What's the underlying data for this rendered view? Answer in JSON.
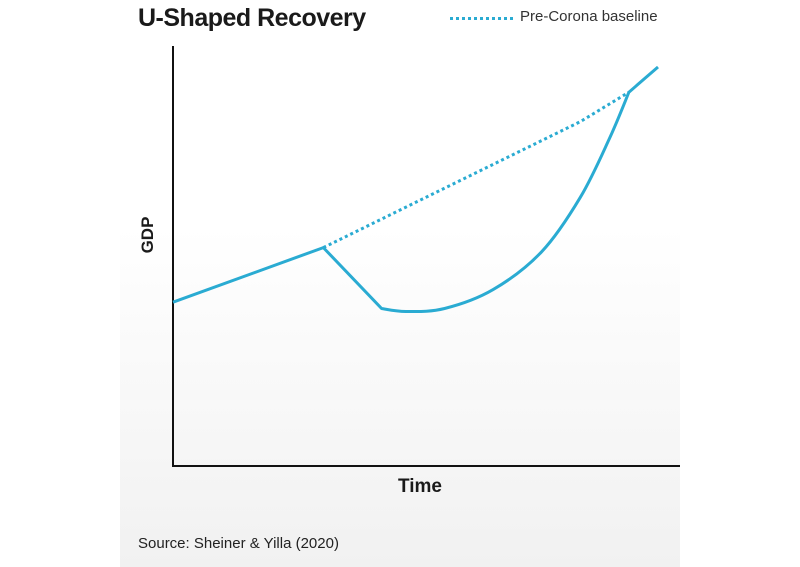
{
  "chart_data": {
    "type": "line",
    "title": "U-Shaped Recovery",
    "xlabel": "Time",
    "ylabel": "GDP",
    "xlim": [
      0,
      100
    ],
    "ylim": [
      0,
      100
    ],
    "grid": false,
    "legend_position": "top-right",
    "series": [
      {
        "name": "",
        "style": "solid",
        "color": "#2aabd2",
        "x": [
          0,
          31,
          43,
          48,
          56,
          66,
          76,
          84,
          90,
          94,
          100
        ],
        "y": [
          39,
          52,
          37.5,
          36.8,
          37.5,
          42,
          51,
          64,
          78,
          89,
          95
        ]
      },
      {
        "name": "Pre-Corona baseline",
        "style": "dotted",
        "color": "#2aabd2",
        "x": [
          31,
          84,
          94
        ],
        "y": [
          52,
          82,
          89
        ]
      }
    ]
  },
  "source": "Source: Sheiner & Yilla (2020)"
}
